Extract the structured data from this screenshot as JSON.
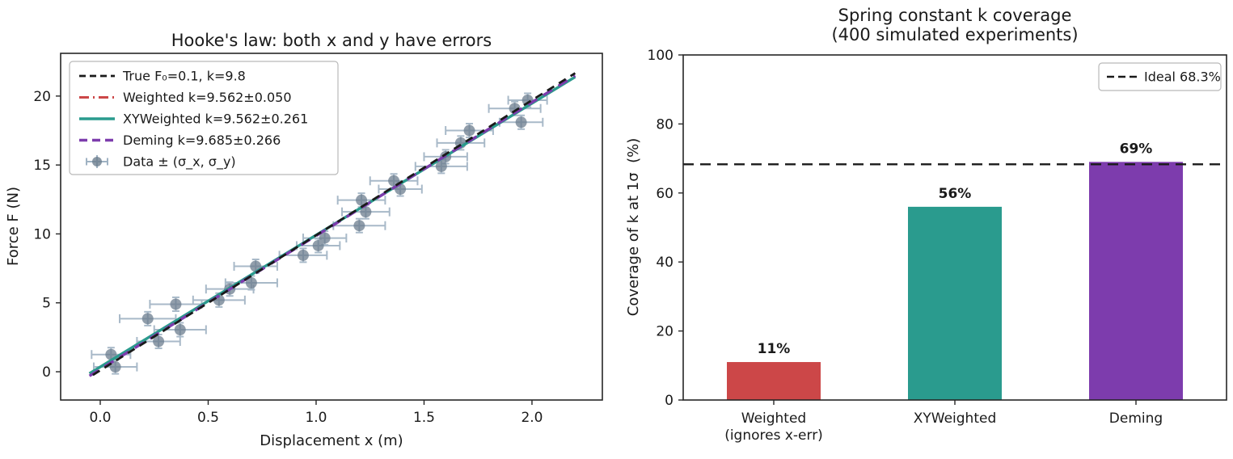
{
  "figure": {
    "background": "#ffffff",
    "text_color": "#1a1a1a",
    "spine_color": "#262626"
  },
  "chart_data": [
    {
      "type": "scatter",
      "title": "Hooke's law: both x and y have errors",
      "xlabel": "Displacement x (m)",
      "ylabel": "Force F (N)",
      "xlim": [
        -0.1835,
        2.326
      ],
      "ylim": [
        -2.05,
        23.1
      ],
      "xticks": [
        0.0,
        0.5,
        1.0,
        1.5,
        2.0
      ],
      "xtick_labels": [
        "0.0",
        "0.5",
        "1.0",
        "1.5",
        "2.0"
      ],
      "yticks": [
        0,
        5,
        10,
        15,
        20
      ],
      "ytick_labels": [
        "0",
        "5",
        "10",
        "15",
        "20"
      ],
      "grid": false,
      "legend_position": "upper left",
      "marker_color": "#6d7e8f",
      "errorbar_color": "#9fb2c3",
      "data_legend_label": "Data ± (σ_x, σ_y)",
      "line_x_range": [
        -0.05,
        2.2
      ],
      "lines": [
        {
          "name": "True",
          "label": "True  F₀=0.1, k=9.8",
          "k": 9.8,
          "f0": 0.1,
          "color": "#1a1a1a",
          "style": "dashed",
          "lw": 2.8,
          "z": 4,
          "dashoffset": 12
        },
        {
          "name": "Weighted",
          "label": "Weighted    k=9.562±0.050",
          "k": 9.562,
          "f0": 0.35,
          "color": "#cc4748",
          "style": "dashdot",
          "lw": 3.0,
          "z": 1,
          "dashoffset": 0
        },
        {
          "name": "XYWeighted",
          "label": "XYWeighted  k=9.562±0.261",
          "k": 9.562,
          "f0": 0.35,
          "color": "#2a9b8e",
          "style": "solid",
          "lw": 3.4,
          "z": 2,
          "dashoffset": 0
        },
        {
          "name": "Deming",
          "label": "Deming      k=9.685±0.266",
          "k": 9.685,
          "f0": 0.18,
          "color": "#7d3cad",
          "style": "dashed_long",
          "lw": 3.4,
          "z": 3,
          "dashoffset": 0
        }
      ],
      "points": [
        {
          "x": 0.05,
          "y": 1.25,
          "xerr": 0.09,
          "yerr": 0.5
        },
        {
          "x": 0.07,
          "y": 0.35,
          "xerr": 0.1,
          "yerr": 0.5
        },
        {
          "x": 0.22,
          "y": 3.85,
          "xerr": 0.13,
          "yerr": 0.5
        },
        {
          "x": 0.27,
          "y": 2.2,
          "xerr": 0.1,
          "yerr": 0.5
        },
        {
          "x": 0.35,
          "y": 4.9,
          "xerr": 0.12,
          "yerr": 0.5
        },
        {
          "x": 0.37,
          "y": 3.05,
          "xerr": 0.12,
          "yerr": 0.5
        },
        {
          "x": 0.55,
          "y": 5.2,
          "xerr": 0.12,
          "yerr": 0.5
        },
        {
          "x": 0.6,
          "y": 6.0,
          "xerr": 0.11,
          "yerr": 0.5
        },
        {
          "x": 0.7,
          "y": 6.45,
          "xerr": 0.12,
          "yerr": 0.5
        },
        {
          "x": 0.72,
          "y": 7.65,
          "xerr": 0.1,
          "yerr": 0.5
        },
        {
          "x": 0.94,
          "y": 8.45,
          "xerr": 0.11,
          "yerr": 0.5
        },
        {
          "x": 1.01,
          "y": 9.15,
          "xerr": 0.1,
          "yerr": 0.5
        },
        {
          "x": 1.04,
          "y": 9.7,
          "xerr": 0.1,
          "yerr": 0.5
        },
        {
          "x": 1.2,
          "y": 10.6,
          "xerr": 0.12,
          "yerr": 0.5
        },
        {
          "x": 1.21,
          "y": 12.45,
          "xerr": 0.11,
          "yerr": 0.5
        },
        {
          "x": 1.23,
          "y": 11.6,
          "xerr": 0.11,
          "yerr": 0.5
        },
        {
          "x": 1.36,
          "y": 13.85,
          "xerr": 0.11,
          "yerr": 0.5
        },
        {
          "x": 1.39,
          "y": 13.25,
          "xerr": 0.1,
          "yerr": 0.5
        },
        {
          "x": 1.58,
          "y": 14.9,
          "xerr": 0.12,
          "yerr": 0.5
        },
        {
          "x": 1.6,
          "y": 15.6,
          "xerr": 0.1,
          "yerr": 0.5
        },
        {
          "x": 1.67,
          "y": 16.6,
          "xerr": 0.11,
          "yerr": 0.5
        },
        {
          "x": 1.71,
          "y": 17.5,
          "xerr": 0.11,
          "yerr": 0.5
        },
        {
          "x": 1.92,
          "y": 19.1,
          "xerr": 0.12,
          "yerr": 0.5
        },
        {
          "x": 1.95,
          "y": 18.1,
          "xerr": 0.1,
          "yerr": 0.5
        },
        {
          "x": 1.98,
          "y": 19.7,
          "xerr": 0.09,
          "yerr": 0.5
        }
      ]
    },
    {
      "type": "bar",
      "title": "Spring constant k coverage",
      "subtitle": "(400 simulated experiments)",
      "ylabel": "Coverage of k at 1σ  (%)",
      "categories": [
        [
          "Weighted",
          "(ignores x-err)"
        ],
        [
          "XYWeighted"
        ],
        [
          "Deming"
        ]
      ],
      "values": [
        11,
        56,
        69
      ],
      "value_labels": [
        "11%",
        "56%",
        "69%"
      ],
      "colors": [
        "#cc4748",
        "#2a9b8e",
        "#7d3cad"
      ],
      "ylim": [
        0,
        100
      ],
      "yticks": [
        0,
        20,
        40,
        60,
        80,
        100
      ],
      "ytick_labels": [
        "0",
        "20",
        "40",
        "60",
        "80",
        "100"
      ],
      "grid": false,
      "legend_position": "upper right",
      "ideal_line": {
        "value": 68.3,
        "label": "Ideal 68.3%",
        "color": "#1a1a1a"
      }
    }
  ]
}
